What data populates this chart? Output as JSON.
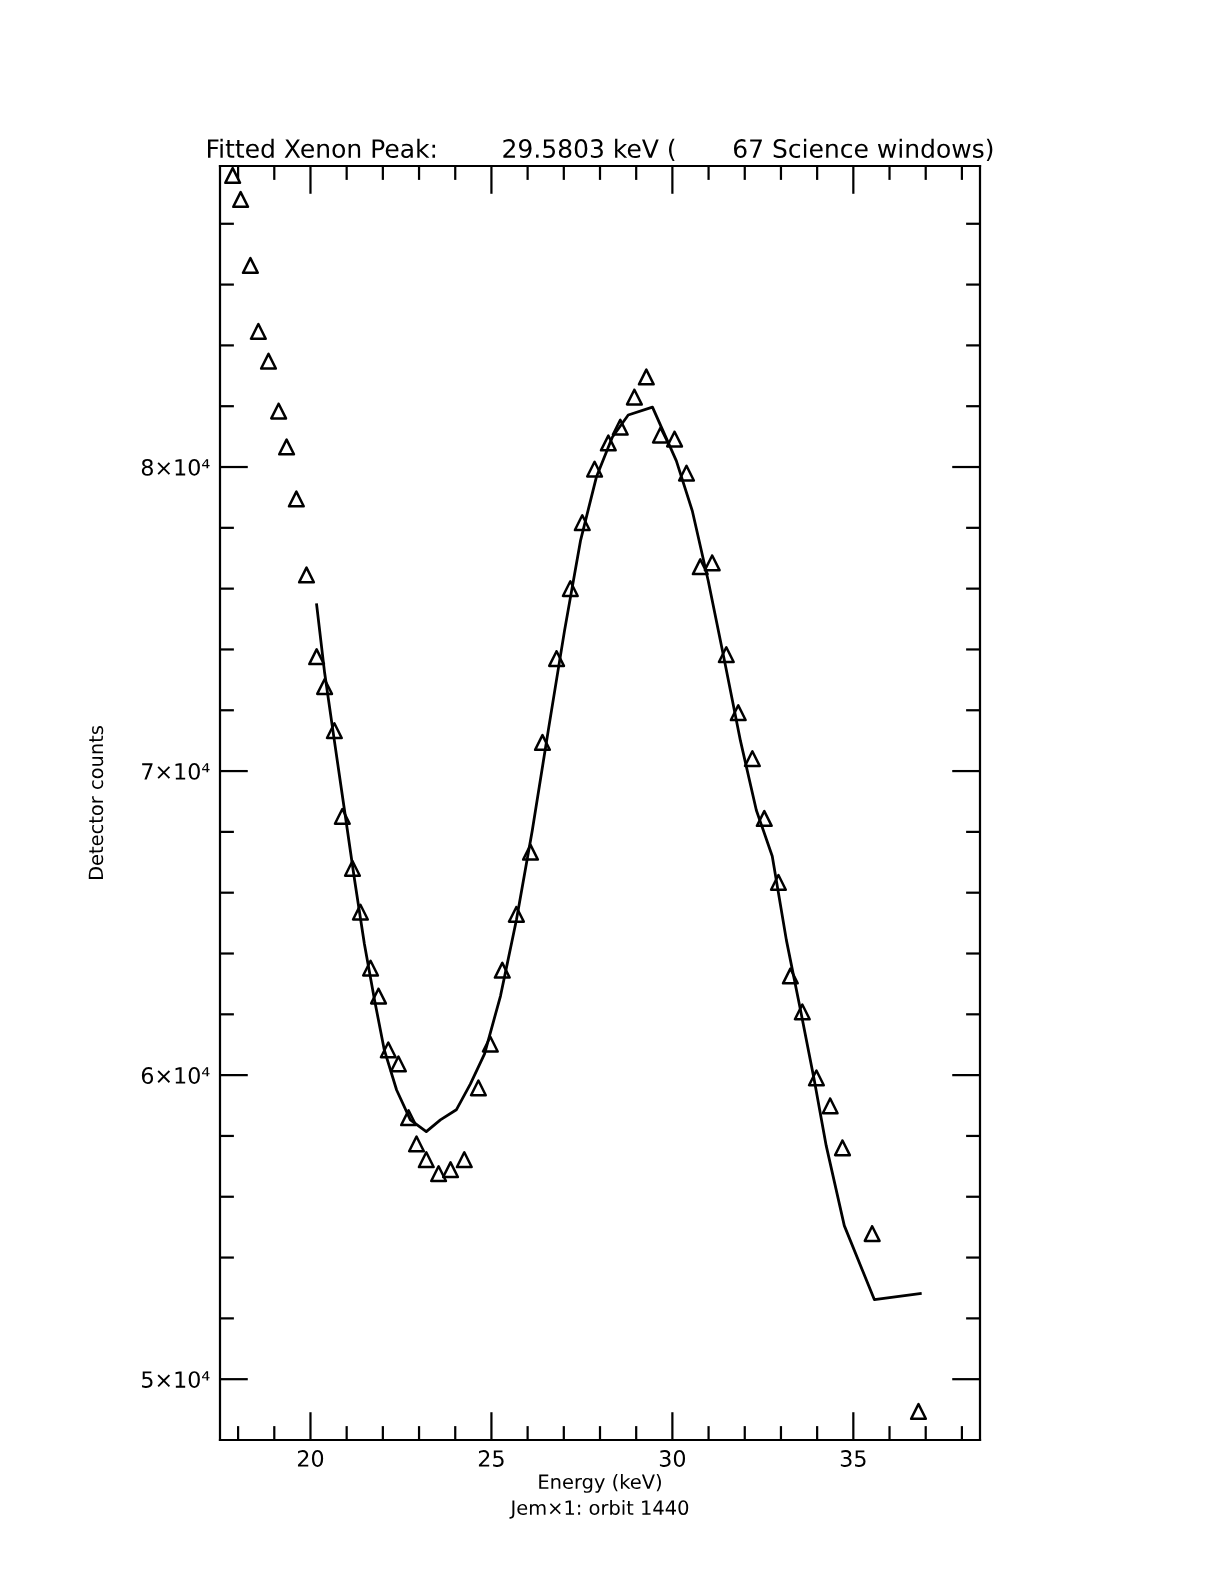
{
  "chart_data": {
    "type": "scatter",
    "title": "Fitted Xenon Peak:        29.5803 keV (       67 Science windows)",
    "xlabel": "Energy (keV)",
    "ylabel": "Detector counts",
    "annotations": [
      "Jem×1: orbit 1440"
    ],
    "xlim": [
      17.5,
      38.5
    ],
    "ylim": [
      48000,
      89900
    ],
    "xticks": [
      {
        "value": 18,
        "label": null
      },
      {
        "value": 19,
        "label": null
      },
      20,
      {
        "value": 21,
        "label": null
      },
      {
        "value": 22,
        "label": null
      },
      {
        "value": 23,
        "label": null
      },
      {
        "value": 24,
        "label": null
      },
      25,
      {
        "value": 26,
        "label": null
      },
      {
        "value": 27,
        "label": null
      },
      {
        "value": 28,
        "label": null
      },
      {
        "value": 29,
        "label": null
      },
      30,
      {
        "value": 31,
        "label": null
      },
      {
        "value": 32,
        "label": null
      },
      {
        "value": 33,
        "label": null
      },
      {
        "value": 34,
        "label": null
      },
      35,
      {
        "value": 36,
        "label": null
      },
      {
        "value": 37,
        "label": null
      },
      {
        "value": 38,
        "label": null
      }
    ],
    "yticks": [
      {
        "value": 50000,
        "label": "5×10⁴"
      },
      {
        "value": 52000,
        "label": null
      },
      {
        "value": 54000,
        "label": null
      },
      {
        "value": 56000,
        "label": null
      },
      {
        "value": 58000,
        "label": null
      },
      {
        "value": 60000,
        "label": "6×10⁴"
      },
      {
        "value": 62000,
        "label": null
      },
      {
        "value": 64000,
        "label": null
      },
      {
        "value": 66000,
        "label": null
      },
      {
        "value": 68000,
        "label": null
      },
      {
        "value": 70000,
        "label": "7×10⁴"
      },
      {
        "value": 72000,
        "label": null
      },
      {
        "value": 74000,
        "label": null
      },
      {
        "value": 76000,
        "label": null
      },
      {
        "value": 78000,
        "label": null
      },
      {
        "value": 80000,
        "label": "8×10⁴"
      },
      {
        "value": 82000,
        "label": null
      },
      {
        "value": 84000,
        "label": null
      },
      {
        "value": 86000,
        "label": null
      },
      {
        "value": 88000,
        "label": null
      }
    ],
    "grid": false,
    "marker": "triangle",
    "series": [
      {
        "color": "#000000",
        "x": [
          17.85,
          18.07,
          18.34,
          18.56,
          18.84,
          19.12,
          19.34,
          19.61,
          19.89,
          20.17,
          20.39,
          20.66,
          20.88,
          21.16,
          21.38,
          21.66,
          21.88,
          22.15,
          22.43,
          22.71,
          22.93,
          23.2,
          23.54,
          23.87,
          24.25,
          24.64,
          24.97,
          25.3,
          25.69,
          26.08,
          26.41,
          26.8,
          27.18,
          27.51,
          27.85,
          28.23,
          28.56,
          28.95,
          29.28,
          29.67,
          30.06,
          30.39,
          30.77,
          31.1,
          31.49,
          31.82,
          32.21,
          32.54,
          32.93,
          33.26,
          33.59,
          33.98,
          34.36,
          34.7,
          35.52,
          36.8
        ],
        "values": [
          89590,
          88800,
          86630,
          84460,
          83480,
          81840,
          80660,
          78950,
          76450,
          73760,
          72780,
          71330,
          68510,
          66800,
          65360,
          63520,
          62600,
          60830,
          60370,
          58600,
          57740,
          57220,
          56760,
          56890,
          57220,
          59580,
          61020,
          63450,
          65290,
          67330,
          70940,
          73700,
          76000,
          78170,
          79930,
          80790,
          81310,
          82300,
          82960,
          81050,
          80920,
          79800,
          76720,
          76850,
          73830,
          71920,
          70410,
          68440,
          66340,
          63260,
          62080,
          59910,
          58990,
          57610,
          54790,
          48940
        ]
      },
      {
        "type": "line",
        "color": "#000000",
        "marker": "none",
        "line_style": "solid",
        "x": [
          20.17,
          20.39,
          20.66,
          20.94,
          21.22,
          21.49,
          21.77,
          22.04,
          22.38,
          22.76,
          23.2,
          23.59,
          24.03,
          24.42,
          24.81,
          25.25,
          25.69,
          26.13,
          26.57,
          27.02,
          27.46,
          27.9,
          28.34,
          28.78,
          29.45,
          30.11,
          30.55,
          30.99,
          31.44,
          31.88,
          32.32,
          32.76,
          33.15,
          33.54,
          33.92,
          34.25,
          34.75,
          35.58,
          36.85
        ],
        "values": [
          75470,
          73240,
          71000,
          68710,
          66410,
          64310,
          62470,
          60830,
          59510,
          58530,
          58140,
          58530,
          58860,
          59710,
          60700,
          62600,
          65100,
          68050,
          71330,
          74620,
          77570,
          79670,
          80980,
          81710,
          81970,
          80200,
          78560,
          76260,
          73630,
          71000,
          68710,
          67200,
          64440,
          62140,
          59840,
          57680,
          55050,
          52620,
          52820
        ]
      }
    ]
  }
}
